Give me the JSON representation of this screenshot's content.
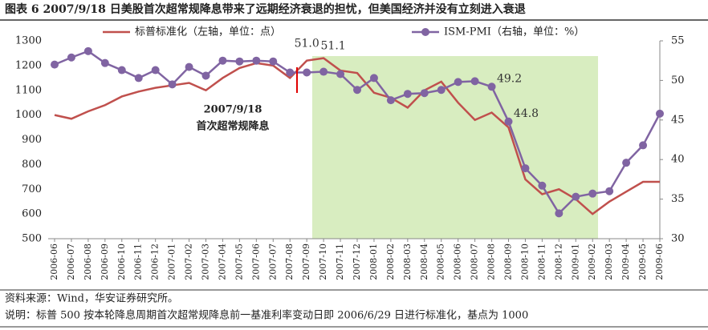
{
  "chart_data": {
    "type": "line",
    "title": "图表 6 2007/9/18 日美股首次超常规降息带来了远期经济衰退的担忧，但美国经济并没有立刻进入衰退",
    "source": "资料来源：Wind，华安证券研究所。",
    "note": "说明：标普 500 按本轮降息周期首次超常规降息前一基准利率变动日即 2006/6/29 日进行标准化，基点为 1000",
    "annotations": [
      "2007/9/18",
      "首次超常规降息"
    ],
    "categories": [
      "2006-06",
      "2006-07",
      "2006-08",
      "2006-09",
      "2006-10",
      "2006-11",
      "2006-12",
      "2007-01",
      "2007-02",
      "2007-03",
      "2007-04",
      "2007-05",
      "2007-06",
      "2007-07",
      "2007-08",
      "2007-09",
      "2007-10",
      "2007-11",
      "2007-12",
      "2008-01",
      "2008-02",
      "2008-03",
      "2008-04",
      "2008-05",
      "2008-06",
      "2008-07",
      "2008-08",
      "2008-09",
      "2008-10",
      "2008-11",
      "2008-12",
      "2009-01",
      "2009-02",
      "2009-03",
      "2009-04",
      "2009-05",
      "2009-06"
    ],
    "series": [
      {
        "name": "标普标准化（左轴，单位：点）",
        "color": "#c0504d",
        "values": [
          1000,
          985,
          1015,
          1040,
          1075,
          1095,
          1110,
          1120,
          1130,
          1100,
          1150,
          1190,
          1210,
          1200,
          1150,
          1220,
          1230,
          1180,
          1170,
          1090,
          1070,
          1030,
          1100,
          1135,
          1050,
          980,
          1010,
          950,
          740,
          680,
          700,
          660,
          600,
          650,
          690,
          730,
          730
        ]
      },
      {
        "name": "ISM-PMI（右轴，单位：%）",
        "color": "#8064a2",
        "axis": "y2",
        "values": [
          52.0,
          52.9,
          53.7,
          52.2,
          51.3,
          50.3,
          51.3,
          49.5,
          51.7,
          50.6,
          52.5,
          52.4,
          52.5,
          52.4,
          51.0,
          51.0,
          51.1,
          50.8,
          48.8,
          50.3,
          47.5,
          48.3,
          48.4,
          48.8,
          49.8,
          49.9,
          49.2,
          44.8,
          38.9,
          36.7,
          33.2,
          35.3,
          35.7,
          36.0,
          39.6,
          41.8,
          45.8
        ],
        "value_labels": [
          null,
          null,
          null,
          null,
          null,
          null,
          null,
          null,
          null,
          null,
          null,
          null,
          null,
          null,
          null,
          "51.0",
          "51.1",
          null,
          null,
          null,
          null,
          null,
          null,
          null,
          null,
          null,
          "49.2",
          "44.8",
          null,
          null,
          null,
          null,
          null,
          null,
          null,
          null,
          null
        ]
      }
    ],
    "ylim": [
      500,
      1300
    ],
    "yticks": [
      500,
      600,
      700,
      800,
      900,
      1000,
      1100,
      1200,
      1300
    ],
    "y2lim": [
      30,
      55
    ],
    "y2ticks": [
      30,
      35,
      40,
      45,
      50,
      55
    ]
  }
}
